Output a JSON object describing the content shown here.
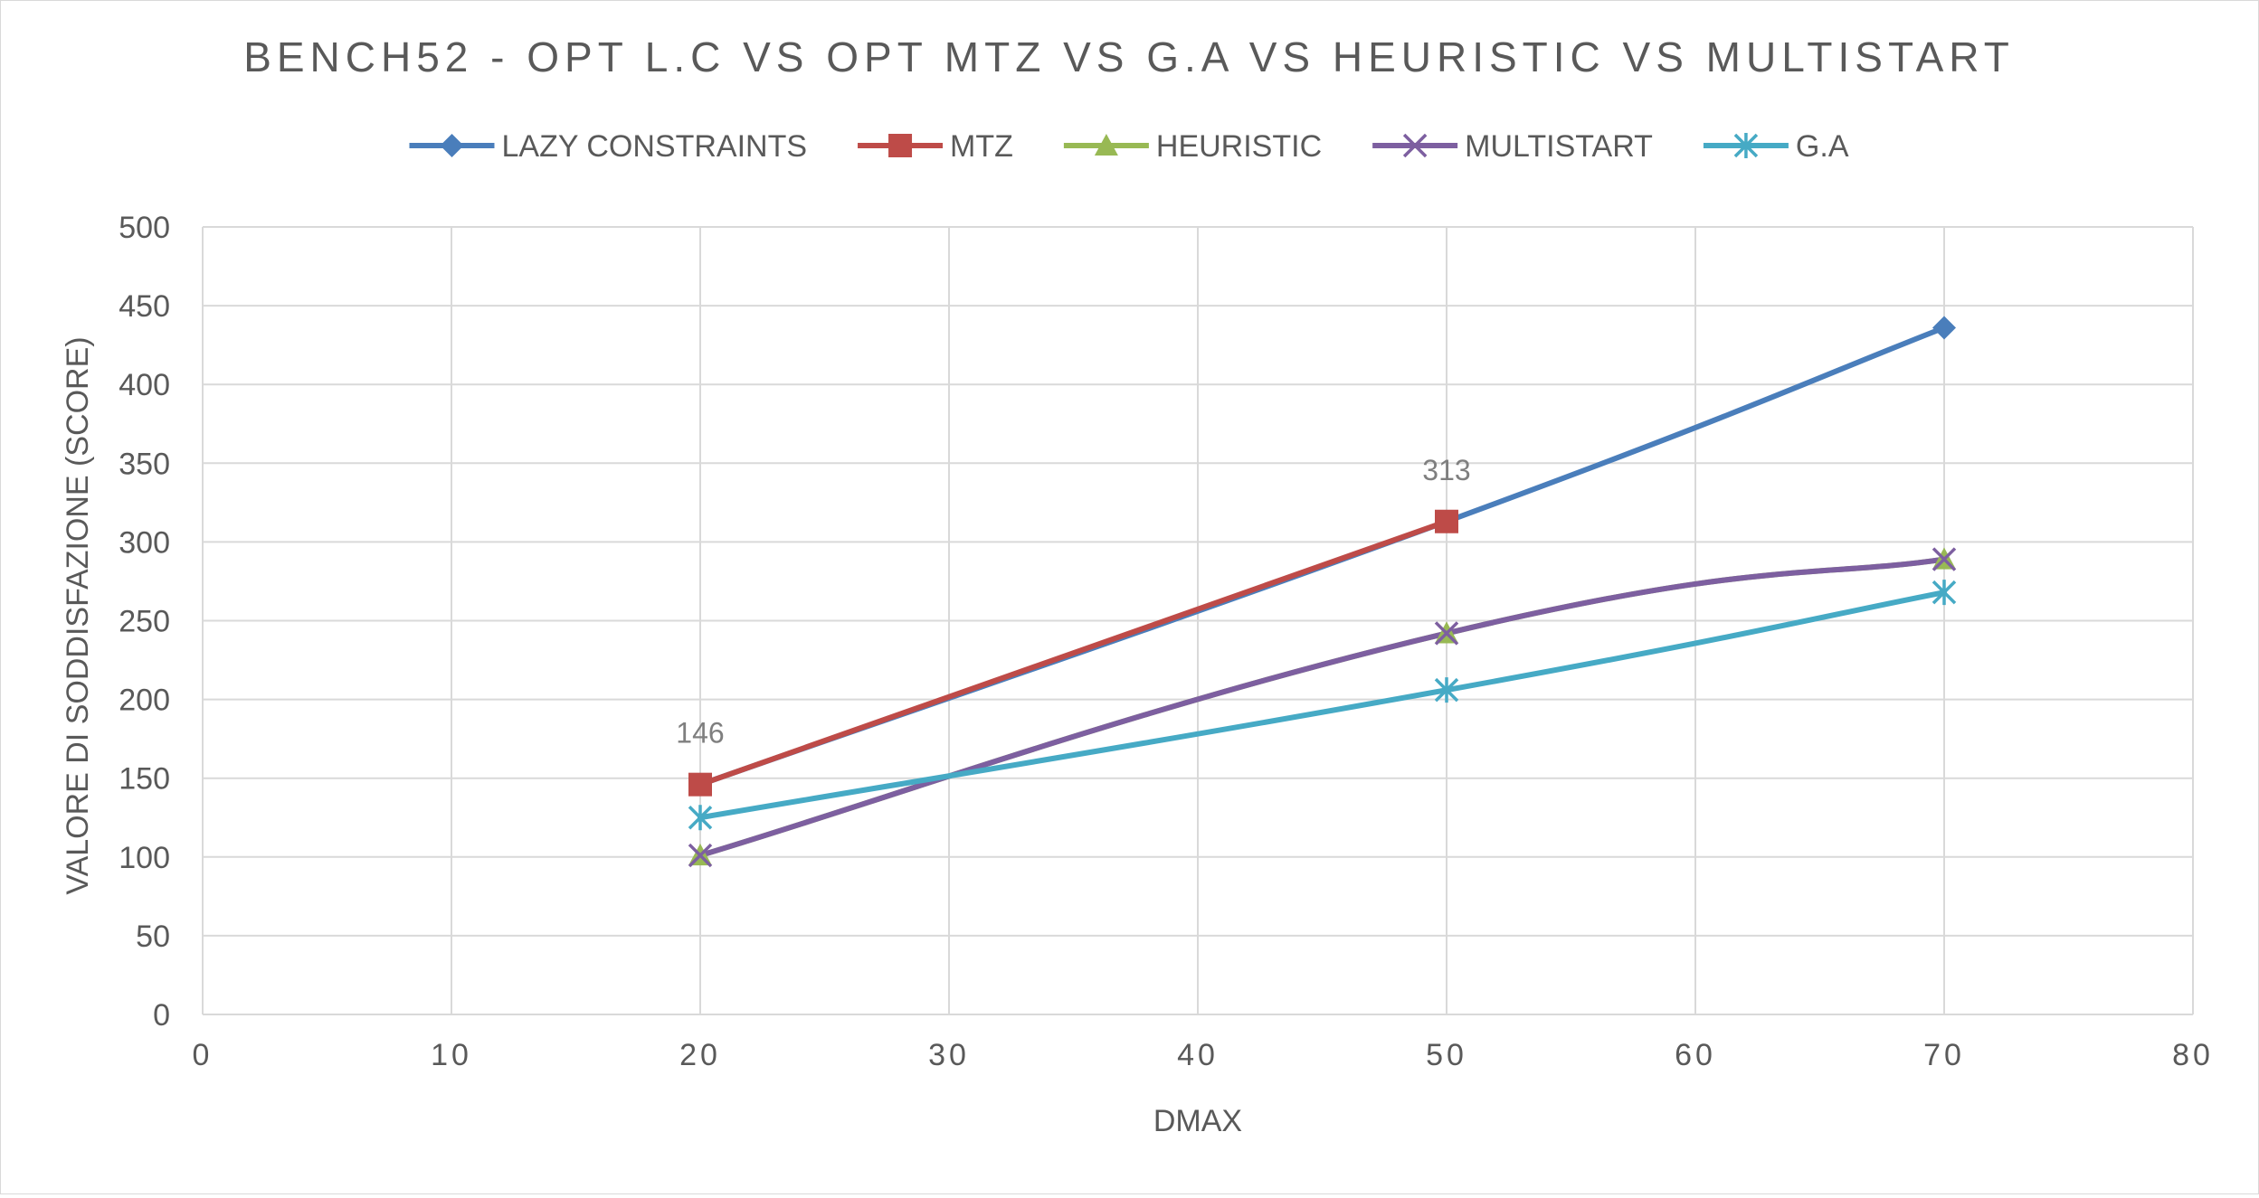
{
  "chart_data": {
    "type": "line",
    "title": "BENCH52 - OPT L.C VS OPT MTZ VS G.A VS HEURISTIC VS MULTISTART",
    "xlabel": "DMAX",
    "ylabel": "VALORE DI SODDISFAZIONE (SCORE)",
    "xlim": [
      0,
      80
    ],
    "ylim": [
      0,
      500
    ],
    "xticks": [
      0,
      10,
      20,
      30,
      40,
      50,
      60,
      70,
      80
    ],
    "yticks": [
      0,
      50,
      100,
      150,
      200,
      250,
      300,
      350,
      400,
      450,
      500
    ],
    "grid": true,
    "legend_position": "top",
    "series": [
      {
        "name": "LAZY CONSTRAINTS",
        "color": "#4a7ebb",
        "marker": "diamond",
        "x": [
          20,
          50,
          70
        ],
        "y": [
          146,
          313,
          436
        ]
      },
      {
        "name": "MTZ",
        "color": "#be4b48",
        "marker": "square",
        "x": [
          20,
          50
        ],
        "y": [
          146,
          313
        ]
      },
      {
        "name": "HEURISTIC",
        "color": "#98b954",
        "marker": "triangle",
        "x": [
          20,
          50,
          70
        ],
        "y": [
          101,
          242,
          289
        ]
      },
      {
        "name": "MULTISTART",
        "color": "#7d5fa0",
        "marker": "x",
        "x": [
          20,
          50,
          70
        ],
        "y": [
          101,
          242,
          289
        ]
      },
      {
        "name": "G.A",
        "color": "#46aac5",
        "marker": "star",
        "x": [
          20,
          50,
          70
        ],
        "y": [
          125,
          206,
          268
        ]
      }
    ],
    "data_labels": [
      {
        "series": "MTZ",
        "x": 20,
        "y": 146,
        "text": "146"
      },
      {
        "series": "MTZ",
        "x": 50,
        "y": 313,
        "text": "313"
      }
    ]
  }
}
